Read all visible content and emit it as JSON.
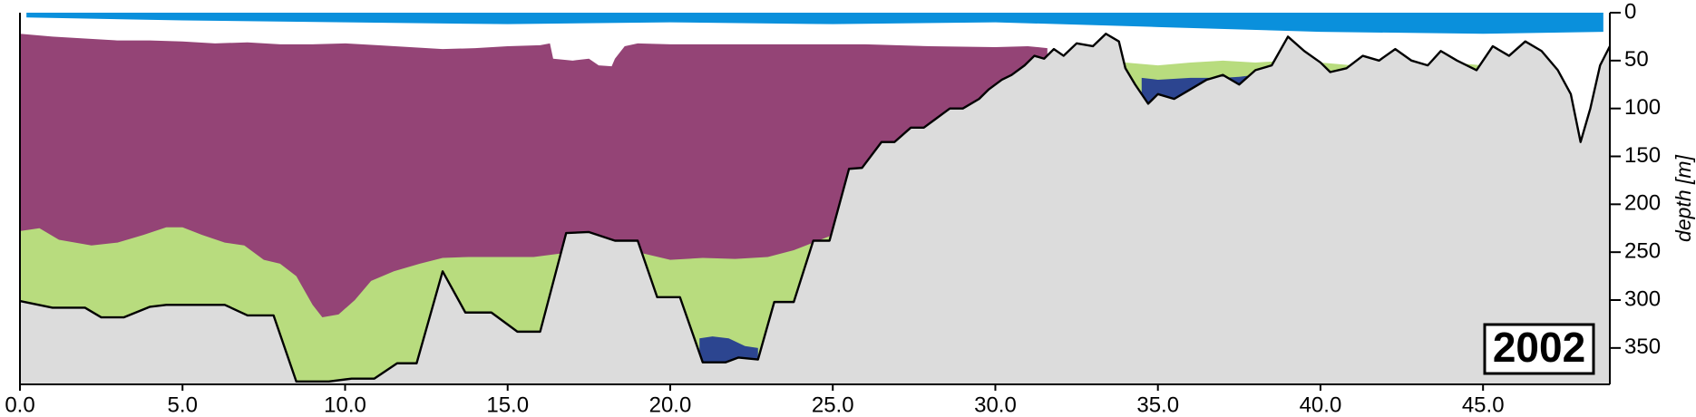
{
  "chart_data": {
    "type": "area",
    "annotation": "2002",
    "ylabel": "depth [m]",
    "xlim": [
      0,
      48.9
    ],
    "ylim": [
      0,
      388
    ],
    "xticks": [
      {
        "value": 0,
        "label": "0.0"
      },
      {
        "value": 5,
        "label": "5.0"
      },
      {
        "value": 10,
        "label": "10.0"
      },
      {
        "value": 15,
        "label": "15.0"
      },
      {
        "value": 20,
        "label": "20.0"
      },
      {
        "value": 25,
        "label": "25.0"
      },
      {
        "value": 30,
        "label": "30.0"
      },
      {
        "value": 35,
        "label": "35.0"
      },
      {
        "value": 40,
        "label": "40.0"
      },
      {
        "value": 45,
        "label": "45.0"
      }
    ],
    "yticks": [
      0,
      50,
      100,
      150,
      200,
      250,
      300,
      350
    ],
    "series": [
      {
        "color": "#0a90dc",
        "fill_to": "top",
        "x": [
          0.2,
          5,
          10,
          15,
          20,
          25,
          30,
          35,
          40,
          45,
          48.7
        ],
        "values": [
          5,
          8,
          10,
          12,
          10,
          12,
          10,
          15,
          20,
          22,
          20
        ]
      },
      {
        "color": "#944476",
        "fill_to": "bottom",
        "x": [
          0,
          1,
          2,
          3,
          4,
          5,
          6,
          7,
          8,
          9,
          10,
          11,
          12,
          13,
          14,
          15,
          16,
          16.3,
          16.4,
          17,
          17.5,
          17.8,
          18.2,
          18.3,
          18.6,
          19,
          20,
          22,
          24,
          26,
          28,
          30,
          31,
          31.6
        ],
        "values": [
          22,
          25,
          27,
          29,
          29,
          30,
          32,
          31,
          33,
          33,
          32,
          34,
          36,
          38,
          37,
          35,
          34,
          32,
          48,
          50,
          48,
          55,
          56,
          48,
          35,
          32,
          33,
          33,
          33,
          33,
          35,
          36,
          35,
          37
        ]
      },
      {
        "color": "#b8dc7e",
        "fill_to": "bottom",
        "x": [
          0,
          0.6,
          1.2,
          2.2,
          3,
          3.8,
          4.5,
          5,
          5.6,
          6.3,
          6.9,
          7.5,
          8,
          8.5,
          9,
          9.3,
          9.8,
          10.3,
          10.8,
          11.5,
          12.3,
          13,
          13.8,
          14.8,
          15.8,
          16.5,
          17,
          18,
          19,
          20,
          21,
          22,
          23,
          23.8,
          24.4,
          25,
          null,
          34,
          35,
          36,
          37,
          38,
          39,
          40,
          41,
          42,
          43,
          44,
          45,
          46
        ],
        "values": [
          228,
          225,
          237,
          243,
          240,
          232,
          224,
          224,
          232,
          240,
          243,
          258,
          262,
          275,
          305,
          318,
          315,
          300,
          280,
          270,
          262,
          256,
          255,
          255,
          255,
          252,
          250,
          248,
          250,
          258,
          256,
          257,
          255,
          248,
          240,
          232,
          null,
          52,
          55,
          52,
          50,
          52,
          50,
          52,
          55,
          55,
          55,
          52,
          55,
          55
        ]
      },
      {
        "color": "#2c4590",
        "fill_to": "bottom",
        "x": [
          20.9,
          21.3,
          21.8,
          22.3,
          22.7,
          null,
          34.5,
          35,
          36,
          37,
          37.5,
          38,
          38.4
        ],
        "values": [
          340,
          338,
          340,
          348,
          350,
          null,
          68,
          70,
          68,
          68,
          67,
          65,
          62
        ]
      },
      {
        "color": "#dcdcdc",
        "fill_to": "bottom",
        "line_color": "#000000",
        "x": [
          0,
          1,
          2,
          2.5,
          3.2,
          4,
          4.5,
          6.3,
          7,
          7.8,
          8.5,
          9.5,
          10.2,
          10.9,
          11.6,
          12.2,
          13,
          13.7,
          14.5,
          15.3,
          16,
          16.8,
          17.5,
          18.3,
          19,
          19.6,
          20.3,
          21,
          21.7,
          22.1,
          22.7,
          23.2,
          23.8,
          24.4,
          24.9,
          25.5,
          25.9,
          26.5,
          26.9,
          27.4,
          27.8,
          28.2,
          28.6,
          29,
          29.5,
          29.8,
          30.2,
          30.5,
          30.9,
          31.2,
          31.5,
          31.8,
          32.1,
          32.5,
          33,
          33.4,
          33.8,
          34,
          34.3,
          34.7,
          35,
          35.5,
          36,
          36.5,
          37,
          37.5,
          38,
          38.5,
          39,
          39.5,
          40,
          40.3,
          40.8,
          41.3,
          41.8,
          42.3,
          42.8,
          43.3,
          43.7,
          44.2,
          44.8,
          45.3,
          45.8,
          46.3,
          46.8,
          47.3,
          47.7,
          48,
          48.3,
          48.6,
          48.9
        ],
        "values": [
          301,
          308,
          308,
          318,
          318,
          307,
          305,
          305,
          316,
          316,
          385,
          385,
          382,
          382,
          366,
          366,
          270,
          313,
          313,
          333,
          333,
          230,
          229,
          238,
          238,
          297,
          297,
          365,
          365,
          360,
          362,
          302,
          302,
          238,
          238,
          163,
          162,
          135,
          135,
          120,
          120,
          110,
          100,
          100,
          90,
          80,
          70,
          65,
          55,
          45,
          48,
          38,
          45,
          32,
          35,
          22,
          30,
          58,
          75,
          95,
          85,
          90,
          80,
          70,
          65,
          75,
          60,
          55,
          25,
          40,
          52,
          62,
          58,
          45,
          50,
          38,
          50,
          55,
          40,
          50,
          60,
          35,
          45,
          30,
          40,
          60,
          85,
          135,
          100,
          55,
          35
        ]
      }
    ]
  }
}
